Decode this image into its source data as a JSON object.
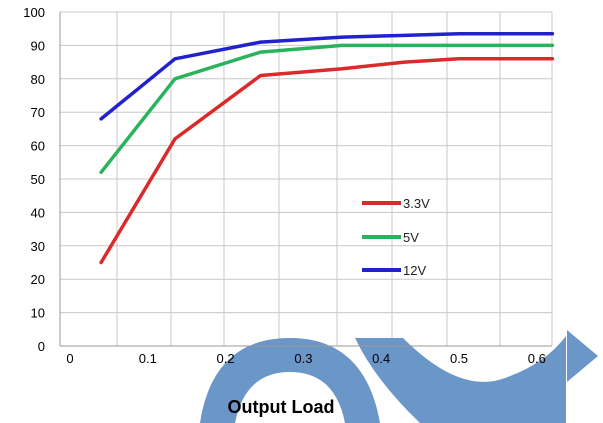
{
  "chart_data": {
    "type": "line",
    "title": "",
    "xlabel": "Output Load",
    "ylabel": "",
    "xlim": [
      0,
      0.62
    ],
    "ylim": [
      0,
      100
    ],
    "grid": true,
    "legend": "center-right",
    "y_ticks": [
      "0",
      "10",
      "20",
      "30",
      "40",
      "50",
      "60",
      "70",
      "80",
      "90",
      "100"
    ],
    "x_tick_labels": [
      {
        "label": "0",
        "value": 0
      },
      {
        "label": "0.1",
        "value": 0.1
      },
      {
        "label": "0.2",
        "value": 0.2
      },
      {
        "label": "0.3",
        "value": 0.3
      },
      {
        "label": "0.4",
        "value": 0.4
      },
      {
        "label": "0.5",
        "value": 0.5
      },
      {
        "label": "0.6",
        "value": 0.6
      }
    ],
    "series": [
      {
        "name": "3.3V",
        "color": "#d92b2b",
        "x": [
          0.04,
          0.135,
          0.245,
          0.35,
          0.43,
          0.5,
          0.62
        ],
        "y": [
          25,
          62,
          81,
          83,
          85,
          86,
          86
        ]
      },
      {
        "name": "5V",
        "color": "#2ab35c",
        "x": [
          0.04,
          0.135,
          0.245,
          0.35,
          0.43,
          0.5,
          0.62
        ],
        "y": [
          52,
          80,
          88,
          90,
          90,
          90,
          90
        ]
      },
      {
        "name": "12V",
        "color": "#2222cc",
        "x": [
          0.04,
          0.135,
          0.245,
          0.35,
          0.43,
          0.5,
          0.62
        ],
        "y": [
          68,
          86,
          91,
          92.5,
          93,
          93.5,
          93.5
        ]
      }
    ]
  },
  "decoration": {
    "shape_color": "#6b96c8"
  }
}
